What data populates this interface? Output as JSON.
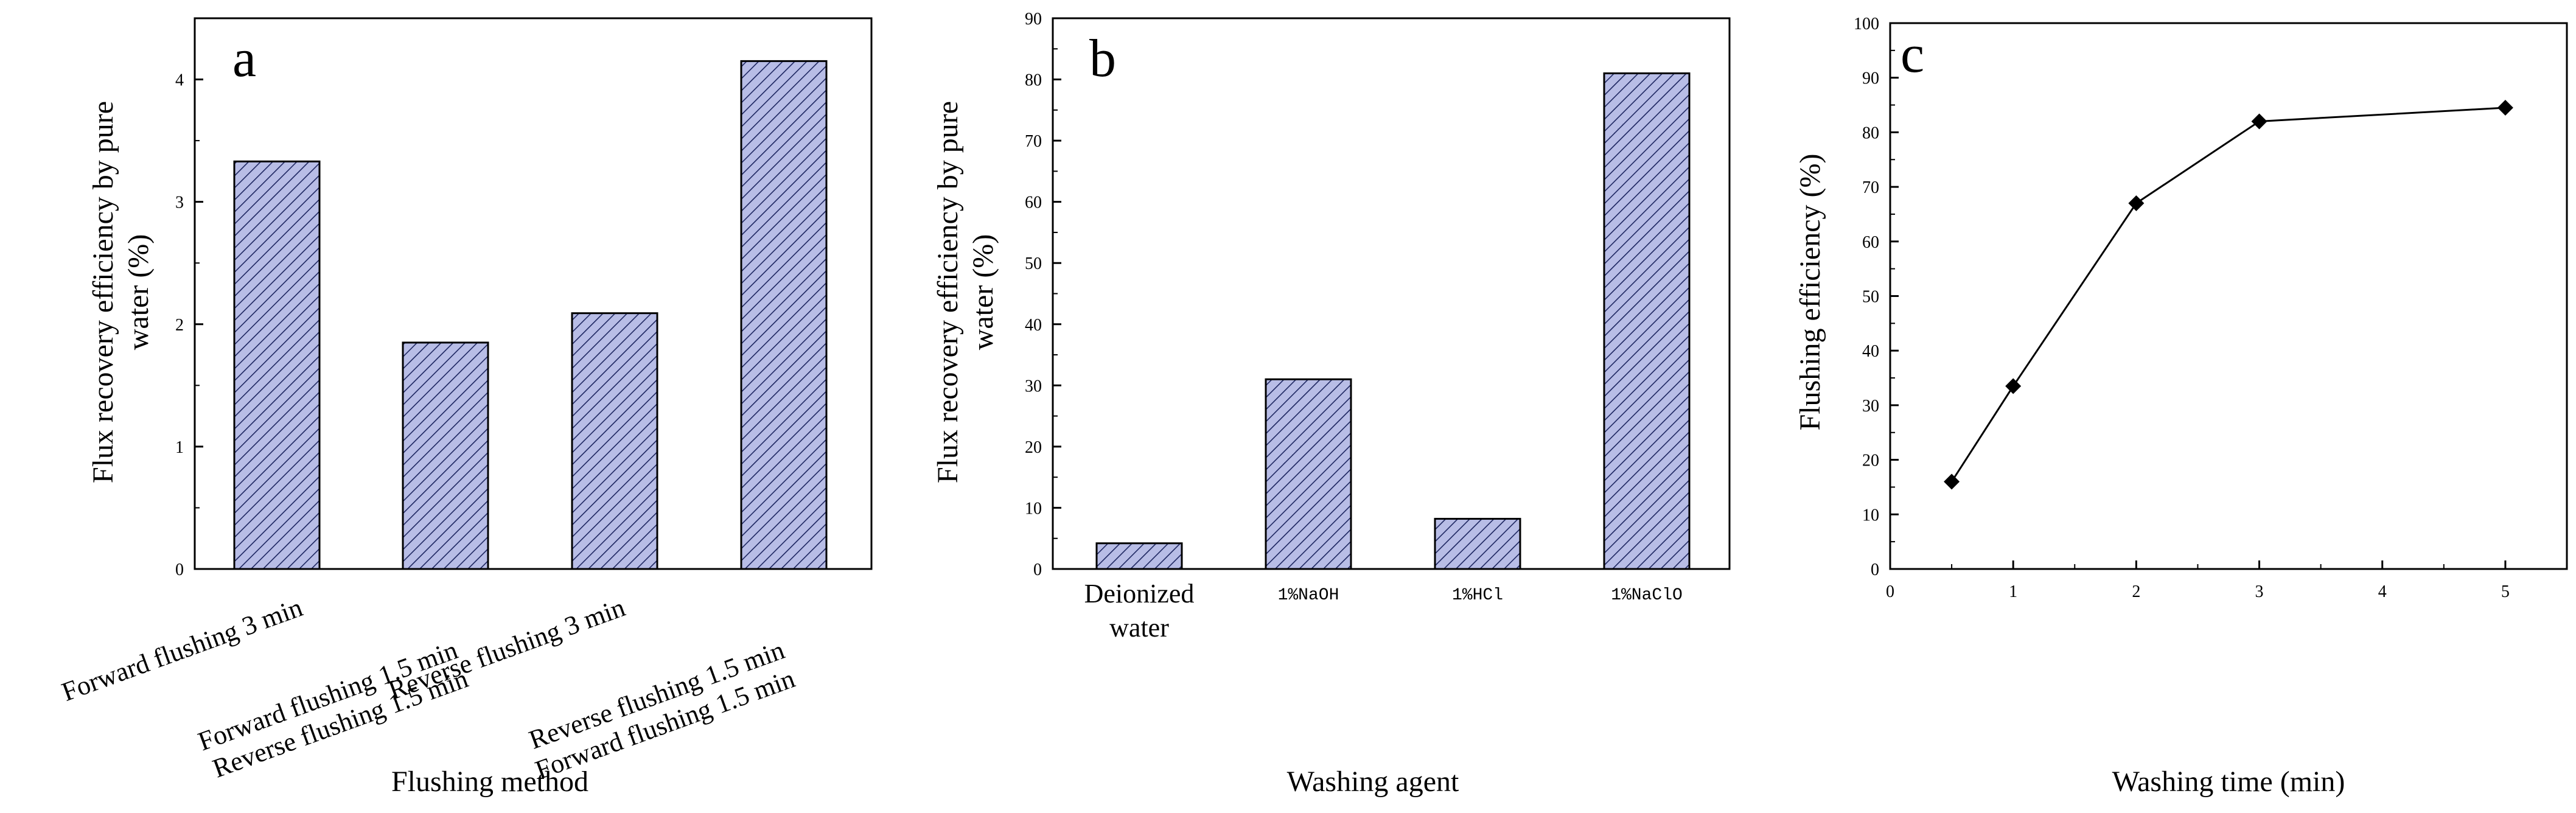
{
  "chart_data": [
    {
      "type": "bar",
      "panel_label": "a",
      "categories": [
        [
          "Forward flushing 3 min"
        ],
        [
          "Forward flushing 1.5 min",
          "Reverse flushing 1.5 min"
        ],
        [
          "Reverse flushing 3 min"
        ],
        [
          "Reverse flushing 1.5 min",
          "Forward flushing 1.5 min"
        ]
      ],
      "values": [
        3.33,
        1.85,
        2.09,
        4.15
      ],
      "yticks": [
        "0",
        "1",
        "2",
        "3",
        "4"
      ],
      "ylim": [
        0,
        4.5
      ],
      "xlabel": "Flushing method",
      "ylabel": [
        "Flux recovery efficiency by pure",
        "water (%)"
      ],
      "bar_fill": "#b8bde6",
      "hatch_color": "#1c2560"
    },
    {
      "type": "bar",
      "panel_label": "b",
      "categories": [
        [
          "Deionized",
          "water"
        ],
        [
          "1%NaOH"
        ],
        [
          "1%HCl"
        ],
        [
          "1%NaClO"
        ]
      ],
      "values": [
        4.2,
        31,
        8.2,
        81
      ],
      "yticks": [
        "0",
        "10",
        "20",
        "30",
        "40",
        "50",
        "60",
        "70",
        "80",
        "90"
      ],
      "ylim": [
        0,
        90
      ],
      "xlabel": "Washing agent",
      "ylabel": [
        "Flux recovery efficiency by pure",
        "water (%)"
      ],
      "bar_fill": "#b8bde6",
      "hatch_color": "#1c2560"
    },
    {
      "type": "line",
      "panel_label": "c",
      "x": [
        0.5,
        1,
        2,
        3,
        5
      ],
      "y": [
        16,
        33.5,
        67,
        82,
        84.5
      ],
      "xticks": [
        "0",
        "1",
        "2",
        "3",
        "4",
        "5"
      ],
      "yticks": [
        "0",
        "10",
        "20",
        "30",
        "40",
        "50",
        "60",
        "70",
        "80",
        "90",
        "100"
      ],
      "xlim": [
        0,
        5.5
      ],
      "ylim": [
        0,
        100
      ],
      "xlabel": "Washing time (min)",
      "ylabel": "Flushing efficiency (%)",
      "marker": "diamond",
      "line_color": "#000000"
    }
  ]
}
